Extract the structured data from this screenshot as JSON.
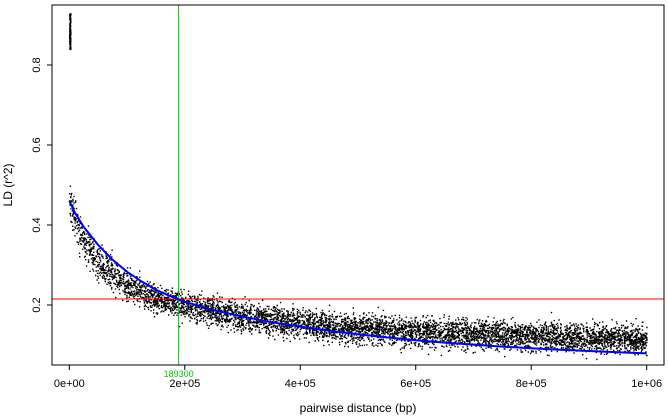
{
  "chart_data": {
    "type": "scatter",
    "xlabel": "pairwise distance (bp)",
    "ylabel": "LD (r^2)",
    "xlim": [
      -30000,
      1030000
    ],
    "ylim": [
      0.05,
      0.95
    ],
    "x_ticks": [
      {
        "value": 0,
        "label": "0e+00"
      },
      {
        "value": 200000,
        "label": "2e+05"
      },
      {
        "value": 400000,
        "label": "4e+05"
      },
      {
        "value": 600000,
        "label": "6e+05"
      },
      {
        "value": 800000,
        "label": "8e+05"
      },
      {
        "value": 1000000,
        "label": "1e+06"
      }
    ],
    "y_ticks": [
      {
        "value": 0.2,
        "label": "0.2"
      },
      {
        "value": 0.4,
        "label": "0.4"
      },
      {
        "value": 0.6,
        "label": "0.6"
      },
      {
        "value": 0.8,
        "label": "0.8"
      }
    ],
    "grid": false,
    "scatter_trend": {
      "x": [
        0,
        25000,
        50000,
        75000,
        100000,
        125000,
        150000,
        175000,
        200000,
        250000,
        300000,
        350000,
        400000,
        450000,
        500000,
        550000,
        600000,
        650000,
        700000,
        750000,
        800000,
        850000,
        900000,
        950000,
        1000000
      ],
      "y": [
        0.46,
        0.36,
        0.31,
        0.275,
        0.25,
        0.232,
        0.218,
        0.207,
        0.2,
        0.185,
        0.172,
        0.163,
        0.155,
        0.147,
        0.142,
        0.138,
        0.134,
        0.131,
        0.128,
        0.125,
        0.123,
        0.121,
        0.119,
        0.117,
        0.115
      ],
      "spread": 0.03,
      "color": "#000000"
    },
    "short_distance_cluster": {
      "x_max": 2000,
      "y_min": 0.84,
      "y_max": 0.93
    },
    "fitted_curve": {
      "x": [
        0,
        10000,
        25000,
        50000,
        75000,
        100000,
        125000,
        150000,
        175000,
        189300,
        200000,
        250000,
        300000,
        350000,
        400000,
        450000,
        500000,
        550000,
        600000,
        650000,
        700000,
        750000,
        800000,
        850000,
        900000,
        950000,
        1000000
      ],
      "y": [
        0.46,
        0.43,
        0.395,
        0.35,
        0.313,
        0.283,
        0.259,
        0.238,
        0.222,
        0.214,
        0.208,
        0.187,
        0.171,
        0.157,
        0.146,
        0.136,
        0.127,
        0.119,
        0.112,
        0.106,
        0.101,
        0.096,
        0.092,
        0.088,
        0.085,
        0.082,
        0.079
      ],
      "color": "#0000ff"
    },
    "hline": {
      "y": 0.215,
      "color": "#ff0000"
    },
    "vline": {
      "x": 189300,
      "label": "189300",
      "color": "#00cc00"
    }
  }
}
